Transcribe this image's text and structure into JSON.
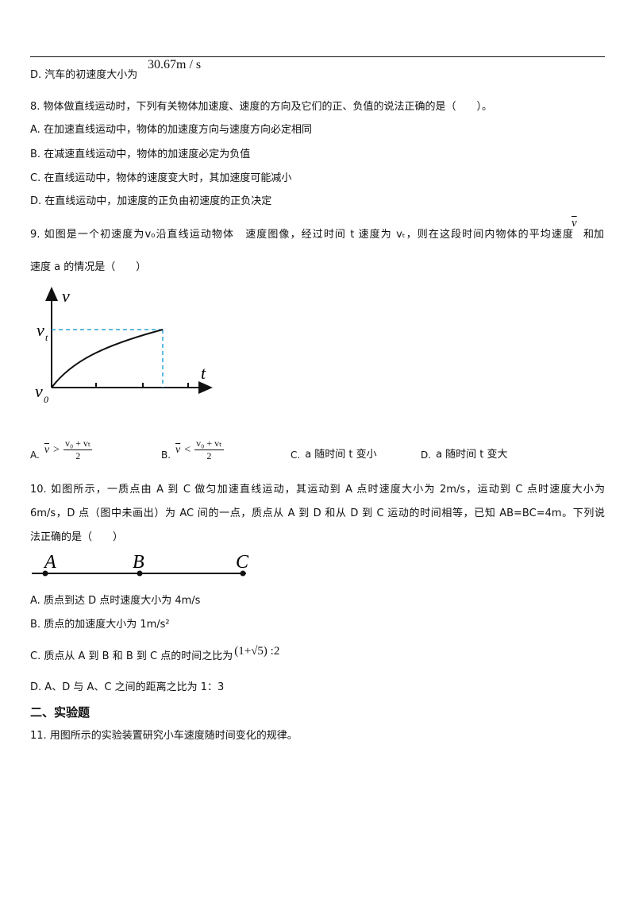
{
  "q7": {
    "option_label": "D.",
    "text": "汽车的初速度大小为",
    "answer": "30.67m / s"
  },
  "q8": {
    "stem": "8. 物体做直线运动时，下列有关物体加速度、速度的方向及它们的正、负值的说法正确的是（　　）。",
    "options": [
      {
        "label": "A.",
        "text": "在加速直线运动中，物体的加速度方向与速度方向必定相同"
      },
      {
        "label": "B.",
        "text": "在减速直线运动中，物体的加速度必定为负值"
      },
      {
        "label": "C.",
        "text": "在直线运动中，物体的速度变大时，其加速度可能减小"
      },
      {
        "label": "D.",
        "text": "在直线运动中，加速度的正负由初速度的正负决定"
      }
    ]
  },
  "q9": {
    "stem_line1": "9. 如图是一个初速度为v₀沿直线运动物体　速度图像，经过时间 t 速度为 vₜ，则在这段时间内物体的平均速度",
    "v_bar": "v",
    "stem_line1_end": "和加",
    "stem_line2": "速度 a 的情况是（　　）",
    "graph": {
      "v_axis": "v",
      "vt_main": "v",
      "vt_sub": "t",
      "t_axis": "t",
      "v0_main": "v",
      "v0_sub": "0"
    },
    "options": [
      {
        "label": "A.",
        "lhs": "v",
        "op": ">",
        "num": "v₀ + vₜ",
        "den": "2"
      },
      {
        "label": "B.",
        "lhs": "v",
        "op": "<",
        "num": "v₀ + vₜ",
        "den": "2"
      },
      {
        "label": "C.",
        "text": "a 随时间 t 变小"
      },
      {
        "label": "D.",
        "text": "a 随时间 t 变大"
      }
    ]
  },
  "q10": {
    "stem_lines": [
      "10. 如图所示，一质点由 A 到 C 做匀加速直线运动，其运动到 A 点时速度大小为 2m/s，运动到 C 点时速度大小为",
      "6m/s，D 点（图中未画出）为 AC 间的一点，质点从 A 到 D 和从 D 到 C 运动的时间相等，已知 AB=BC=4m。下列说",
      "法正确的是（　　）"
    ],
    "diagram": {
      "points": [
        "A",
        "B",
        "C"
      ]
    },
    "options": [
      {
        "label": "A.",
        "text": "质点到达 D 点时速度大小为 4m/s"
      },
      {
        "label": "B.",
        "text": "质点的加速度大小为 1m/s²"
      },
      {
        "label": "C.",
        "text": "质点从 A 到 B 和 B 到 C 点的时间之比为",
        "math": "(1+√5) :2"
      },
      {
        "label": "D.",
        "text": "A、D 与 A、C 之间的距离之比为 1：3"
      }
    ]
  },
  "section": "二、实验题",
  "q11": "11. 用图所示的实验装置研究小车速度随时间变化的规律。"
}
